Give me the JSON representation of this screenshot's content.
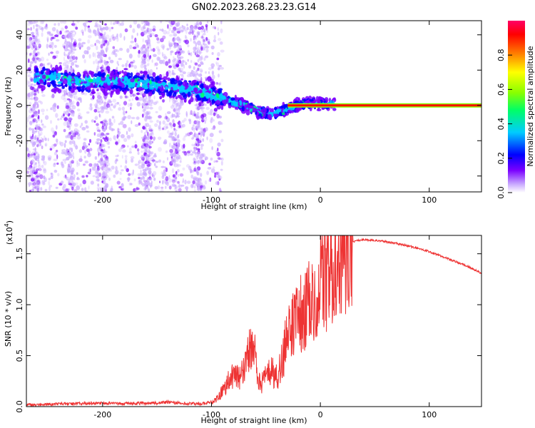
{
  "title": "GN02.2023.268.23.23.G14",
  "chart_data": [
    {
      "type": "heatmap",
      "xlabel": "Height of straight line (km)",
      "ylabel": "Frequency (Hz)",
      "xlim": [
        -270,
        148
      ],
      "ylim": [
        -49,
        48
      ],
      "xticks": [
        -200,
        -100,
        0,
        100
      ],
      "yticks": [
        -40,
        -20,
        0,
        20,
        40
      ],
      "colorbar": {
        "label": "Normalized spectral amplitude",
        "range": [
          0,
          1
        ],
        "ticks": [
          "0.0",
          "0.2",
          "0.4",
          "0.6",
          "0.8"
        ],
        "tick_values": [
          0,
          0.2,
          0.4,
          0.6,
          0.8
        ],
        "colormap": [
          "#ffffff",
          "#c8a8ff",
          "#7a00ff",
          "#0000ff",
          "#00ccff",
          "#00ff66",
          "#88ff00",
          "#ffff00",
          "#ff8800",
          "#ff0000",
          "#ff0066"
        ]
      },
      "ridge": {
        "x": [
          -250,
          -220,
          -190,
          -160,
          -130,
          -110,
          -95,
          -80,
          -65,
          -55,
          -45,
          -35,
          -25,
          -15,
          0,
          20,
          60,
          100,
          148
        ],
        "frequency": [
          16,
          13,
          14,
          12,
          10,
          8,
          5,
          2,
          -1,
          -4,
          -5,
          -3,
          -1,
          1,
          1,
          0,
          0,
          0,
          0
        ]
      }
    },
    {
      "type": "line",
      "xlabel": "Height of straight line (km)",
      "ylabel": "SNR (10 * v/v)",
      "y_multiplier": "(x10",
      "y_multiplier_exp": "4",
      "y_multiplier_close": ")",
      "xlim": [
        -270,
        148
      ],
      "ylim": [
        0,
        1.68
      ],
      "xticks": [
        -200,
        -100,
        0,
        100
      ],
      "yticks": [
        "0.0",
        "0.5",
        "1.0",
        "1.5"
      ],
      "ytick_values": [
        0,
        0.5,
        1.0,
        1.5
      ],
      "color": "#ee3333",
      "series": [
        {
          "x": [
            -270,
            -240,
            -200,
            -180,
            -150,
            -140,
            -130,
            -110,
            -100,
            -95,
            -90,
            -85,
            -80,
            -75,
            -70,
            -65,
            -60,
            -55,
            -50,
            -45,
            -40,
            -35,
            -30,
            -25,
            -20,
            -15,
            -10,
            -5,
            0,
            5,
            10,
            15,
            20,
            25,
            30,
            35,
            40,
            50,
            60,
            70,
            80,
            90,
            100,
            110,
            120,
            130,
            140,
            148
          ],
          "y": [
            0.0,
            0.01,
            0.02,
            0.015,
            0.02,
            0.03,
            0.02,
            0.01,
            0.03,
            0.08,
            0.15,
            0.25,
            0.3,
            0.28,
            0.35,
            0.55,
            0.5,
            0.2,
            0.3,
            0.35,
            0.28,
            0.45,
            0.7,
            0.85,
            0.95,
            0.9,
            1.05,
            1.15,
            1.2,
            1.3,
            1.35,
            1.5,
            1.55,
            1.6,
            1.62,
            1.63,
            1.64,
            1.63,
            1.62,
            1.6,
            1.58,
            1.55,
            1.52,
            1.48,
            1.44,
            1.4,
            1.35,
            1.31
          ]
        }
      ]
    }
  ]
}
